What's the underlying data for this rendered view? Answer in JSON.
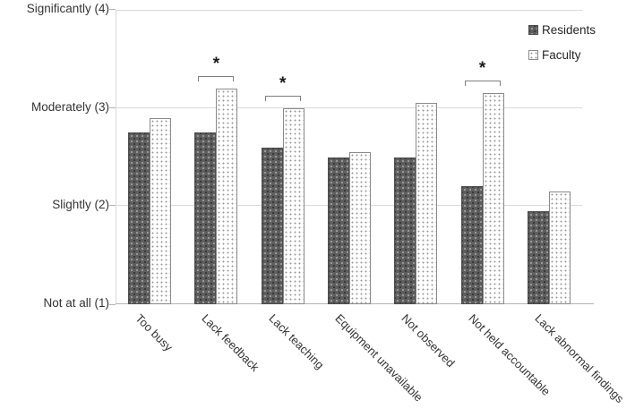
{
  "chart_data": {
    "type": "bar",
    "title": "",
    "categories": [
      "Too busy",
      "Lack feedback",
      "Lack teaching",
      "Equipment unavailable",
      "Not observed",
      "Not held accountable",
      "Lack abnormal findings"
    ],
    "series": [
      {
        "name": "Residents",
        "values": [
          2.75,
          2.75,
          2.6,
          2.5,
          2.5,
          2.2,
          1.95
        ]
      },
      {
        "name": "Faculty",
        "values": [
          2.9,
          3.2,
          3.0,
          2.55,
          3.05,
          3.15,
          2.15
        ]
      }
    ],
    "significant": [
      false,
      true,
      true,
      false,
      false,
      true,
      false
    ],
    "significance_marker": "*",
    "y_axis": {
      "min": 1,
      "max": 4,
      "tick_labels": [
        "Not at all (1)",
        "Slightly (2)",
        "Moderately (3)",
        "Significantly (4)"
      ]
    },
    "legend": {
      "position": "top-right",
      "entries": [
        "Residents",
        "Faculty"
      ]
    },
    "grid": true,
    "colors": {
      "residents_fill": "#5e5e5e",
      "faculty_fill": "#ffffff",
      "faculty_border": "#8a8a8a",
      "gridline": "#d9d9d9",
      "axis_line": "#b3b3b3",
      "text": "#333333"
    }
  }
}
